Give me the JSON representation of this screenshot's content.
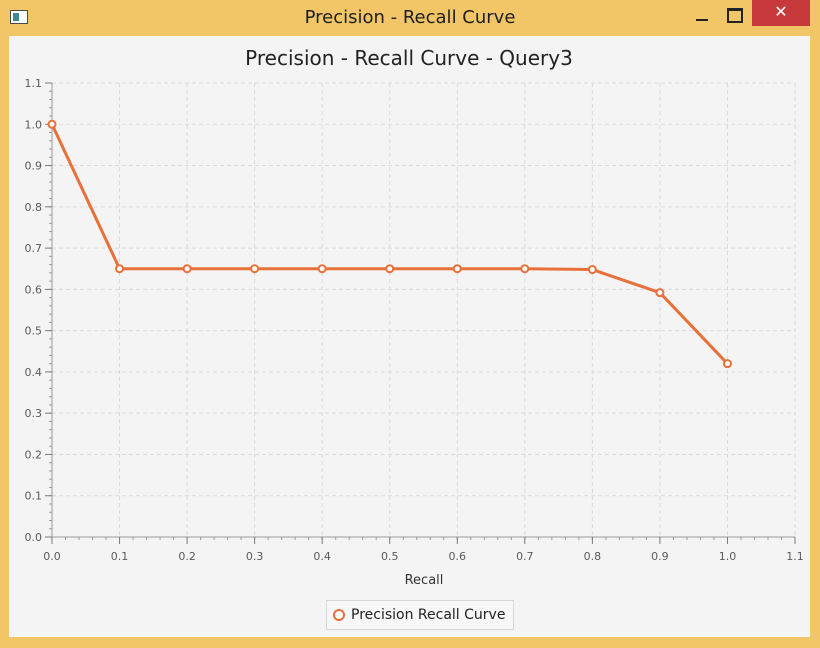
{
  "window": {
    "title": "Precision - Recall Curve",
    "icon": "app-window-icon",
    "controls": [
      "minimize-icon",
      "maximize-icon",
      "close-icon"
    ],
    "close_glyph": "✕"
  },
  "colors": {
    "series": "#e8703a",
    "titlebar": "#f2c566",
    "close": "#c7393a",
    "plot_bg": "#f4f4f4",
    "grid": "#d9d9d9"
  },
  "chart_data": {
    "type": "line",
    "title": "Precision - Recall Curve - Query3",
    "xlabel": "Recall",
    "ylabel": "",
    "xlim": [
      0.0,
      1.1
    ],
    "ylim": [
      0.0,
      1.1
    ],
    "xticks": [
      "0.0",
      "0.1",
      "0.2",
      "0.3",
      "0.4",
      "0.5",
      "0.6",
      "0.7",
      "0.8",
      "0.9",
      "1.0",
      "1.1"
    ],
    "yticks": [
      "0.0",
      "0.1",
      "0.2",
      "0.3",
      "0.4",
      "0.5",
      "0.6",
      "0.7",
      "0.8",
      "0.9",
      "1.0",
      "1.1"
    ],
    "grid": true,
    "legend_position": "bottom-center",
    "series": [
      {
        "name": "Precision Recall Curve",
        "x": [
          0.0,
          0.1,
          0.2,
          0.3,
          0.4,
          0.5,
          0.6,
          0.7,
          0.8,
          0.9,
          1.0
        ],
        "y": [
          1.0,
          0.65,
          0.65,
          0.65,
          0.65,
          0.65,
          0.65,
          0.65,
          0.648,
          0.592,
          0.42
        ]
      }
    ]
  }
}
